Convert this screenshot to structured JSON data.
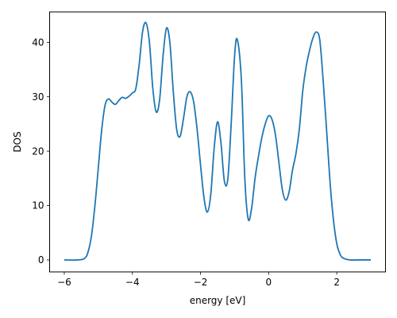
{
  "chart_data": {
    "type": "line",
    "title": "",
    "xlabel": "energy [eV]",
    "ylabel": "DOS",
    "xlim": [
      -6.43,
      3.43
    ],
    "ylim": [
      -2.2,
      45.6
    ],
    "xticks": [
      -6,
      -4,
      -2,
      0,
      2
    ],
    "yticks": [
      0,
      10,
      20,
      30,
      40
    ],
    "grid": false,
    "series": [
      {
        "color": "#1f77b4",
        "points": [
          [
            -6.0,
            0.0
          ],
          [
            -5.6,
            0.0
          ],
          [
            -5.4,
            0.3
          ],
          [
            -5.3,
            1.5
          ],
          [
            -5.2,
            4.5
          ],
          [
            -5.1,
            10.0
          ],
          [
            -5.0,
            17.0
          ],
          [
            -4.9,
            24.0
          ],
          [
            -4.8,
            28.5
          ],
          [
            -4.7,
            29.6
          ],
          [
            -4.6,
            29.0
          ],
          [
            -4.5,
            28.6
          ],
          [
            -4.4,
            29.3
          ],
          [
            -4.3,
            29.9
          ],
          [
            -4.2,
            29.7
          ],
          [
            -4.1,
            30.1
          ],
          [
            -4.0,
            30.7
          ],
          [
            -3.9,
            31.5
          ],
          [
            -3.8,
            36.0
          ],
          [
            -3.7,
            42.0
          ],
          [
            -3.6,
            43.6
          ],
          [
            -3.5,
            40.0
          ],
          [
            -3.4,
            31.5
          ],
          [
            -3.3,
            27.2
          ],
          [
            -3.2,
            29.5
          ],
          [
            -3.1,
            37.5
          ],
          [
            -3.0,
            42.6
          ],
          [
            -2.9,
            40.0
          ],
          [
            -2.8,
            31.0
          ],
          [
            -2.7,
            24.0
          ],
          [
            -2.6,
            22.7
          ],
          [
            -2.5,
            26.0
          ],
          [
            -2.4,
            30.0
          ],
          [
            -2.3,
            30.9
          ],
          [
            -2.2,
            29.0
          ],
          [
            -2.1,
            24.0
          ],
          [
            -2.0,
            17.5
          ],
          [
            -1.9,
            11.5
          ],
          [
            -1.8,
            8.8
          ],
          [
            -1.7,
            12.0
          ],
          [
            -1.6,
            20.5
          ],
          [
            -1.5,
            25.4
          ],
          [
            -1.4,
            21.5
          ],
          [
            -1.3,
            14.5
          ],
          [
            -1.2,
            14.8
          ],
          [
            -1.1,
            25.0
          ],
          [
            -1.0,
            37.5
          ],
          [
            -0.92,
            40.5
          ],
          [
            -0.8,
            33.0
          ],
          [
            -0.7,
            15.0
          ],
          [
            -0.6,
            7.5
          ],
          [
            -0.5,
            9.5
          ],
          [
            -0.4,
            15.0
          ],
          [
            -0.3,
            19.0
          ],
          [
            -0.2,
            22.5
          ],
          [
            -0.1,
            25.0
          ],
          [
            0.0,
            26.5
          ],
          [
            0.1,
            25.8
          ],
          [
            0.2,
            23.0
          ],
          [
            0.3,
            18.0
          ],
          [
            0.4,
            13.0
          ],
          [
            0.5,
            11.0
          ],
          [
            0.6,
            12.5
          ],
          [
            0.7,
            16.5
          ],
          [
            0.8,
            19.5
          ],
          [
            0.9,
            24.0
          ],
          [
            1.0,
            31.0
          ],
          [
            1.1,
            35.5
          ],
          [
            1.2,
            38.5
          ],
          [
            1.3,
            40.8
          ],
          [
            1.4,
            41.9
          ],
          [
            1.5,
            40.5
          ],
          [
            1.6,
            33.0
          ],
          [
            1.7,
            24.0
          ],
          [
            1.8,
            14.5
          ],
          [
            1.9,
            7.5
          ],
          [
            2.0,
            3.0
          ],
          [
            2.1,
            1.0
          ],
          [
            2.2,
            0.3
          ],
          [
            2.4,
            0.0
          ],
          [
            2.6,
            0.0
          ],
          [
            3.0,
            0.0
          ]
        ]
      }
    ]
  }
}
